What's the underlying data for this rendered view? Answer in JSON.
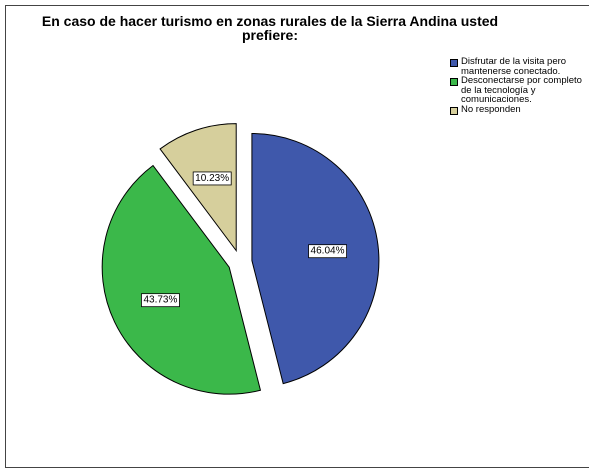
{
  "chart_data": {
    "type": "pie",
    "title": "En caso de hacer turismo en zonas rurales de la Sierra Andina usted prefiere:",
    "categories": [
      "Disfrutar de la visita pero mantenerse conectado.",
      "Desconectarse por completo de la tecnología y comunicaciones.",
      "No responden"
    ],
    "values": [
      46.04,
      43.73,
      10.23
    ],
    "value_labels": [
      "46.04%",
      "43.73%",
      "10.23%"
    ],
    "colors": [
      "#3f58ab",
      "#3bb84a",
      "#d6cf9c"
    ],
    "legend": "top-right"
  }
}
